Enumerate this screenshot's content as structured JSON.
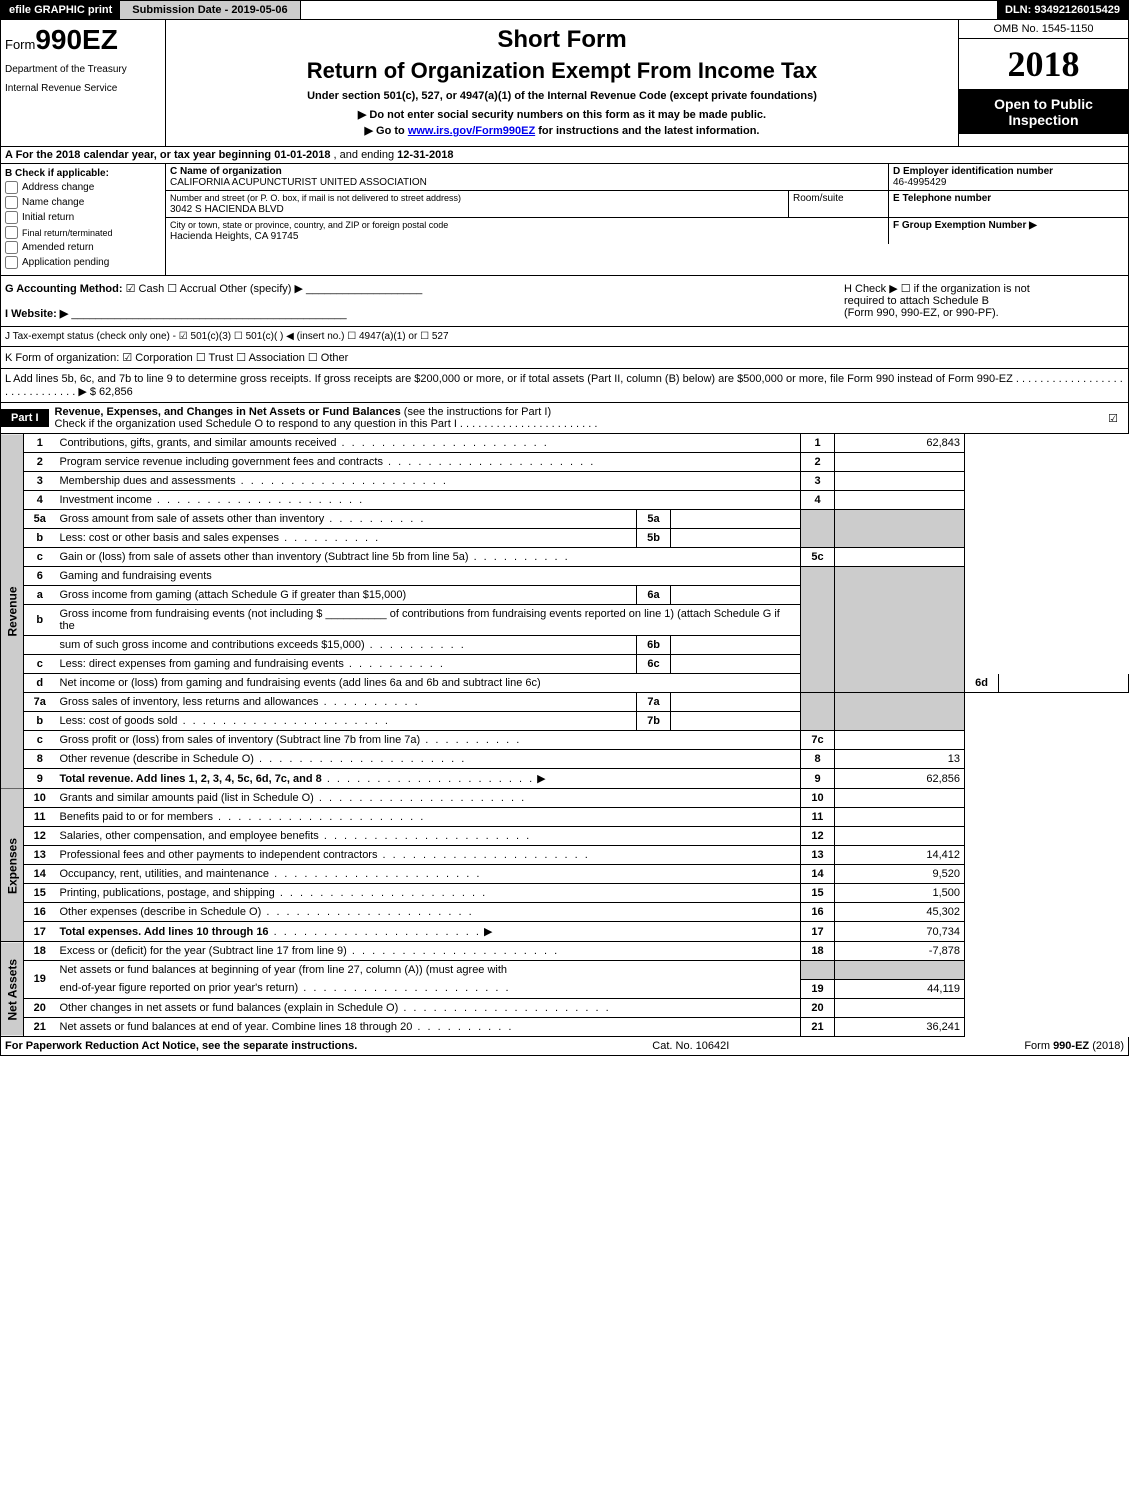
{
  "top_bar": {
    "efile_btn": "efile GRAPHIC print",
    "submission": "Submission Date - 2019-05-06",
    "dln": "DLN: 93492126015429"
  },
  "header": {
    "form_prefix": "Form",
    "form_number": "990EZ",
    "dept_line1": "Department of the Treasury",
    "dept_line2": "Internal Revenue Service",
    "short_form": "Short Form",
    "return_title": "Return of Organization Exempt From Income Tax",
    "under_section": "Under section 501(c), 527, or 4947(a)(1) of the Internal Revenue Code (except private foundations)",
    "no_ssn": "▶ Do not enter social security numbers on this form as it may be made public.",
    "goto_prefix": "▶ Go to ",
    "goto_link": "www.irs.gov/Form990EZ",
    "goto_suffix": " for instructions and the latest information.",
    "omb": "OMB No. 1545-1150",
    "year": "2018",
    "open_public_line1": "Open to Public",
    "open_public_line2": "Inspection"
  },
  "section_a": {
    "text_prefix": "A  For the 2018 calendar year, or tax year beginning ",
    "begin_date": "01-01-2018",
    "text_mid": " , and ending ",
    "end_date": "12-31-2018"
  },
  "section_b": {
    "label": "B  Check if applicable:",
    "items": [
      "Address change",
      "Name change",
      "Initial return",
      "Final return/terminated",
      "Amended return",
      "Application pending"
    ]
  },
  "section_c": {
    "name_label": "C Name of organization",
    "name": "CALIFORNIA ACUPUNCTURIST UNITED ASSOCIATION",
    "address_label": "Number and street (or P. O. box, if mail is not delivered to street address)",
    "address": "3042 S HACIENDA BLVD",
    "room_label": "Room/suite",
    "city_label": "City or town, state or province, country, and ZIP or foreign postal code",
    "city": "Hacienda Heights, CA  91745"
  },
  "section_d": {
    "label": "D Employer identification number",
    "value": "46-4995429"
  },
  "section_e": {
    "label": "E Telephone number"
  },
  "section_f": {
    "label": "F Group Exemption Number   ▶"
  },
  "section_g": {
    "label": "G Accounting Method:",
    "cash": "Cash",
    "accrual": "Accrual",
    "other": "Other (specify) ▶"
  },
  "section_h": {
    "line1": "H  Check ▶  ☐  if the organization is not",
    "line2": "required to attach Schedule B",
    "line3": "(Form 990, 990-EZ, or 990-PF)."
  },
  "section_i": {
    "label": "I Website: ▶"
  },
  "section_j": {
    "text": "J Tax-exempt status (check only one) - ☑ 501(c)(3)  ☐ 501(c)(  ) ◀ (insert no.)  ☐ 4947(a)(1) or  ☐ 527"
  },
  "section_k": {
    "text": "K Form of organization:  ☑ Corporation  ☐ Trust  ☐ Association  ☐ Other"
  },
  "section_l": {
    "text": "L Add lines 5b, 6c, and 7b to line 9 to determine gross receipts. If gross receipts are $200,000 or more, or if total assets (Part II, column (B) below) are $500,000 or more, file Form 990 instead of Form 990-EZ  . . . . . . . . . . . . . . . . . . . . . . . . . . . . . .  ▶ $ 62,856"
  },
  "part1": {
    "label": "Part I",
    "title": "Revenue, Expenses, and Changes in Net Assets or Fund Balances",
    "title_sub": " (see the instructions for Part I)",
    "check_line": "Check if the organization used Schedule O to respond to any question in this Part I . . . . . . . . . . . . . . . . . . . . . . ."
  },
  "side_labels": {
    "revenue": "Revenue",
    "expenses": "Expenses",
    "net_assets": "Net Assets"
  },
  "lines": {
    "1": {
      "desc": "Contributions, gifts, grants, and similar amounts received",
      "value": "62,843"
    },
    "2": {
      "desc": "Program service revenue including government fees and contracts",
      "value": ""
    },
    "3": {
      "desc": "Membership dues and assessments",
      "value": ""
    },
    "4": {
      "desc": "Investment income",
      "value": ""
    },
    "5a": {
      "desc": "Gross amount from sale of assets other than inventory",
      "sub_num": "5a"
    },
    "5b": {
      "desc": "Less: cost or other basis and sales expenses",
      "sub_num": "5b"
    },
    "5c": {
      "desc": "Gain or (loss) from sale of assets other than inventory (Subtract line 5b from line 5a)",
      "value": ""
    },
    "6": {
      "desc": "Gaming and fundraising events"
    },
    "6a": {
      "desc": "Gross income from gaming (attach Schedule G if greater than $15,000)",
      "sub_num": "6a"
    },
    "6b_pre": {
      "desc": "Gross income from fundraising events (not including $ ",
      "desc_suffix": " of contributions from fundraising events reported on line 1) (attach Schedule G if the"
    },
    "6b": {
      "desc": "sum of such gross income and contributions exceeds $15,000)",
      "sub_num": "6b"
    },
    "6c": {
      "desc": "Less: direct expenses from gaming and fundraising events",
      "sub_num": "6c"
    },
    "6d": {
      "desc": "Net income or (loss) from gaming and fundraising events (add lines 6a and 6b and subtract line 6c)",
      "value": ""
    },
    "7a": {
      "desc": "Gross sales of inventory, less returns and allowances",
      "sub_num": "7a"
    },
    "7b": {
      "desc": "Less: cost of goods sold",
      "sub_num": "7b"
    },
    "7c": {
      "desc": "Gross profit or (loss) from sales of inventory (Subtract line 7b from line 7a)",
      "value": ""
    },
    "8": {
      "desc": "Other revenue (describe in Schedule O)",
      "value": "13"
    },
    "9": {
      "desc": "Total revenue. Add lines 1, 2, 3, 4, 5c, 6d, 7c, and 8",
      "value": "62,856"
    },
    "10": {
      "desc": "Grants and similar amounts paid (list in Schedule O)",
      "value": ""
    },
    "11": {
      "desc": "Benefits paid to or for members",
      "value": ""
    },
    "12": {
      "desc": "Salaries, other compensation, and employee benefits",
      "value": ""
    },
    "13": {
      "desc": "Professional fees and other payments to independent contractors",
      "value": "14,412"
    },
    "14": {
      "desc": "Occupancy, rent, utilities, and maintenance",
      "value": "9,520"
    },
    "15": {
      "desc": "Printing, publications, postage, and shipping",
      "value": "1,500"
    },
    "16": {
      "desc": "Other expenses (describe in Schedule O)",
      "value": "45,302"
    },
    "17": {
      "desc": "Total expenses. Add lines 10 through 16",
      "value": "70,734"
    },
    "18": {
      "desc": "Excess or (deficit) for the year (Subtract line 17 from line 9)",
      "value": "-7,878"
    },
    "19": {
      "desc": "Net assets or fund balances at beginning of year (from line 27, column (A)) (must agree with",
      "desc2": "end-of-year figure reported on prior year's return)",
      "value": "44,119"
    },
    "20": {
      "desc": "Other changes in net assets or fund balances (explain in Schedule O)",
      "value": ""
    },
    "21": {
      "desc": "Net assets or fund balances at end of year. Combine lines 18 through 20",
      "value": "36,241"
    }
  },
  "footer": {
    "paperwork": "For Paperwork Reduction Act Notice, see the separate instructions.",
    "cat_no": "Cat. No. 10642I",
    "form_ref": "Form 990-EZ (2018)"
  }
}
